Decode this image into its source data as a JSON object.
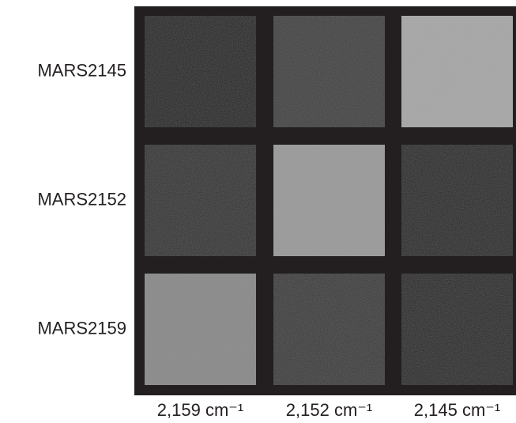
{
  "figure": {
    "rows": [
      {
        "label": "MARS2145",
        "cell_colors": [
          "#141414",
          "#3b3b3b",
          "#a6a6a6"
        ]
      },
      {
        "label": "MARS2152",
        "cell_colors": [
          "#2a2a2a",
          "#999999",
          "#1f1f1f"
        ]
      },
      {
        "label": "MARS2159",
        "cell_colors": [
          "#888888",
          "#363636",
          "#1b1b1b"
        ]
      }
    ],
    "columns": [
      "2,159 cm⁻¹",
      "2,152 cm⁻¹",
      "2,145 cm⁻¹"
    ],
    "panel_color": "#231f20"
  }
}
